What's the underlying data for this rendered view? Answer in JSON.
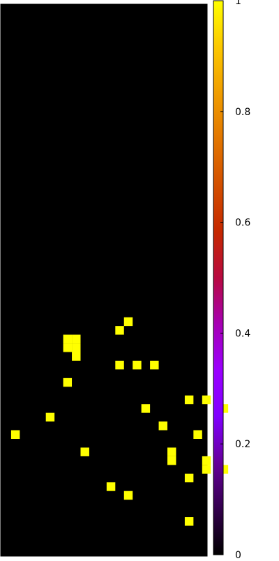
{
  "chart_data": {
    "type": "heatmap",
    "title": "",
    "xlabel": "",
    "ylabel": "",
    "grid": false,
    "axes_tick_labels": false,
    "background_value": 0,
    "cell_value": 1,
    "cells": [
      {
        "col": 15,
        "row": 36
      },
      {
        "col": 14,
        "row": 37
      },
      {
        "col": 8,
        "row": 38
      },
      {
        "col": 9,
        "row": 38
      },
      {
        "col": 8,
        "row": 39
      },
      {
        "col": 9,
        "row": 39
      },
      {
        "col": 9,
        "row": 40
      },
      {
        "col": 14,
        "row": 41
      },
      {
        "col": 16,
        "row": 41
      },
      {
        "col": 18,
        "row": 41
      },
      {
        "col": 8,
        "row": 43
      },
      {
        "col": 22,
        "row": 45
      },
      {
        "col": 24,
        "row": 45
      },
      {
        "col": 17,
        "row": 46
      },
      {
        "col": 26,
        "row": 46
      },
      {
        "col": 6,
        "row": 47
      },
      {
        "col": 19,
        "row": 48
      },
      {
        "col": 2,
        "row": 49
      },
      {
        "col": 23,
        "row": 49
      },
      {
        "col": 10,
        "row": 51
      },
      {
        "col": 20,
        "row": 51
      },
      {
        "col": 20,
        "row": 52
      },
      {
        "col": 24,
        "row": 52
      },
      {
        "col": 24,
        "row": 53
      },
      {
        "col": 26,
        "row": 53
      },
      {
        "col": 22,
        "row": 54
      },
      {
        "col": 13,
        "row": 55
      },
      {
        "col": 15,
        "row": 56
      },
      {
        "col": 22,
        "row": 59
      }
    ],
    "colorbar": {
      "min": 0,
      "max": 1,
      "ticks": [
        0,
        0.2,
        0.4,
        0.6,
        0.8,
        1
      ],
      "tick_labels": [
        "0",
        "0.2",
        "0.4",
        "0.6",
        "0.8",
        "1"
      ],
      "colormap": [
        "#000000",
        "#33004d",
        "#66009a",
        "#8000ff",
        "#9a00ff",
        "#a600b3",
        "#b80a40",
        "#c52800",
        "#d34f00",
        "#e27600",
        "#f09d00",
        "#fcc800",
        "#ffff00"
      ]
    }
  }
}
